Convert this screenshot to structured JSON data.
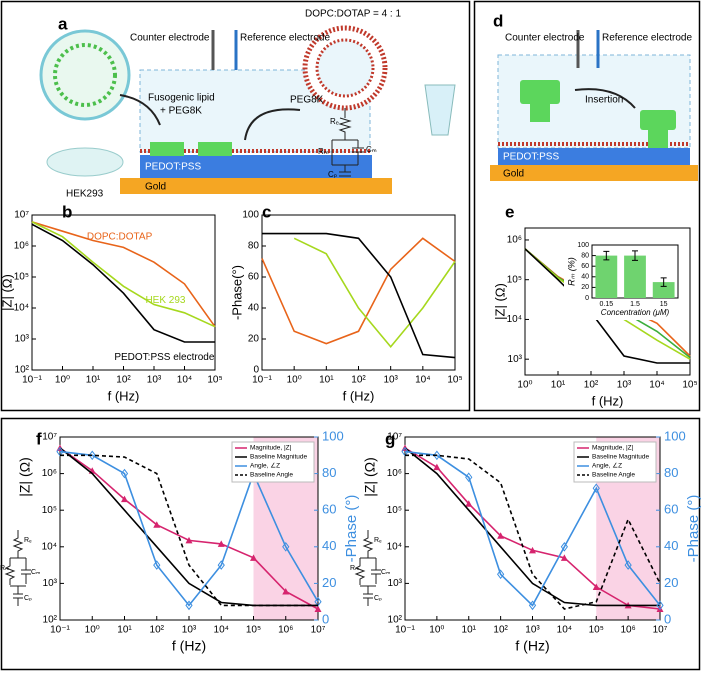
{
  "panels": {
    "a": {
      "label": "a",
      "ratio": "DOPC:DOTAP = 4 : 1",
      "counter": "Counter electrode",
      "reference": "Reference electrode",
      "fusogenic": "Fusogenic lipid",
      "fusogenic2": "+ PEG8K",
      "peg": "PEG8K",
      "cell": "HEK293",
      "pedot": "PEDOT:PSS",
      "gold": "Gold",
      "re": "Rₑ",
      "rm": "Rₘ",
      "cm": "Cₘ",
      "cp": "Cₚ"
    },
    "d": {
      "label": "d",
      "counter": "Counter electrode",
      "reference": "Reference electrode",
      "insertion": "Insertion",
      "pedot": "PEDOT:PSS",
      "gold": "Gold"
    }
  },
  "chart_data": [
    {
      "type": "line",
      "label": "b",
      "xlabel": "f (Hz)",
      "ylabel": "|Z| (Ω)",
      "xlog": true,
      "ylog": true,
      "direct_labels": true,
      "xlim": [
        0.1,
        100000
      ],
      "ylim": [
        100,
        10000000
      ],
      "xticks": [
        {
          "value": 0.1,
          "label": "10⁻¹"
        },
        {
          "value": 1,
          "label": "10⁰"
        },
        {
          "value": 10,
          "label": "10¹"
        },
        {
          "value": 100,
          "label": "10²"
        },
        {
          "value": 1000,
          "label": "10³"
        },
        {
          "value": 10000,
          "label": "10⁴"
        },
        {
          "value": 100000,
          "label": "10⁵"
        }
      ],
      "yticks": [
        {
          "value": 100,
          "label": "10²"
        },
        {
          "value": 1000,
          "label": "10³"
        },
        {
          "value": 10000,
          "label": "10⁴"
        },
        {
          "value": 100000,
          "label": "10⁵"
        },
        {
          "value": 1000000,
          "label": "10⁶"
        },
        {
          "value": 10000000,
          "label": "10⁷"
        }
      ],
      "x": [
        0.1,
        1,
        10,
        100,
        1000,
        10000,
        100000
      ],
      "series": [
        {
          "name": "DOPC:DOTAP",
          "color": "#e8641a",
          "values": [
            6000000,
            3000000,
            1500000,
            900000,
            300000,
            60000,
            2500
          ]
        },
        {
          "name": "HEK 293",
          "color": "#a6d81e",
          "values": [
            6000000,
            2000000,
            300000,
            50000,
            13000,
            7000,
            2500
          ]
        },
        {
          "name": "PEDOT:PSS electrode",
          "color": "#000000",
          "values": [
            5000000,
            1500000,
            250000,
            30000,
            2000,
            800,
            800
          ]
        }
      ]
    },
    {
      "type": "line",
      "label": "c",
      "xlabel": "f (Hz)",
      "ylabel": "-Phase(°)",
      "xlog": true,
      "xlim": [
        0.1,
        100000
      ],
      "ylim": [
        0,
        100
      ],
      "xticks": [
        {
          "value": 0.1,
          "label": "10⁻¹"
        },
        {
          "value": 1,
          "label": "10⁰"
        },
        {
          "value": 10,
          "label": "10¹"
        },
        {
          "value": 100,
          "label": "10²"
        },
        {
          "value": 1000,
          "label": "10³"
        },
        {
          "value": 10000,
          "label": "10⁴"
        },
        {
          "value": 100000,
          "label": "10⁵"
        }
      ],
      "yticks": [
        0,
        20,
        40,
        60,
        80,
        100
      ],
      "x": [
        0.1,
        1,
        10,
        100,
        1000,
        10000,
        100000
      ],
      "series": [
        {
          "color": "#e8641a",
          "values": [
            72,
            25,
            17,
            25,
            65,
            85,
            70
          ]
        },
        {
          "color": "#a6d81e",
          "values": [
            null,
            85,
            75,
            40,
            15,
            40,
            70
          ]
        },
        {
          "color": "#000000",
          "values": [
            88,
            88,
            88,
            85,
            60,
            10,
            8
          ]
        }
      ]
    },
    {
      "type": "line",
      "label": "e",
      "xlabel": "f (Hz)",
      "ylabel": "|Z| (Ω)",
      "xlog": true,
      "ylog": true,
      "xlim": [
        1,
        100000
      ],
      "ylim": [
        400,
        2000000
      ],
      "xticks": [
        {
          "value": 1,
          "label": "10⁰"
        },
        {
          "value": 10,
          "label": "10¹"
        },
        {
          "value": 100,
          "label": "10²"
        },
        {
          "value": 1000,
          "label": "10³"
        },
        {
          "value": 10000,
          "label": "10⁴"
        },
        {
          "value": 100000,
          "label": "10⁵"
        }
      ],
      "yticks": [
        {
          "value": 1000,
          "label": "10³"
        },
        {
          "value": 10000,
          "label": "10⁴"
        },
        {
          "value": 100000,
          "label": "10⁵"
        },
        {
          "value": 1000000,
          "label": "10⁶"
        }
      ],
      "x": [
        1,
        10,
        100,
        1000,
        10000,
        100000
      ],
      "series": [
        {
          "color": "#e8641a",
          "values": [
            600000,
            120000,
            40000,
            20000,
            8000,
            1200
          ]
        },
        {
          "color": "#3cae3c",
          "values": [
            600000,
            115000,
            35000,
            15000,
            5000,
            1100
          ]
        },
        {
          "color": "#a6d81e",
          "values": [
            600000,
            110000,
            30000,
            10000,
            3000,
            1000
          ]
        },
        {
          "color": "#000000",
          "values": [
            600000,
            100000,
            15000,
            1200,
            800,
            800
          ]
        }
      ]
    },
    {
      "type": "bar",
      "xlabel": "Concentration (μM)",
      "ylabel": "Rₘ (%)",
      "categories": [
        "0.15",
        "1.5",
        "15"
      ],
      "values": [
        80,
        80,
        30
      ],
      "errors": [
        8,
        9,
        8
      ],
      "color": "#6fd36f",
      "ylim": [
        0,
        100
      ],
      "yticks": [
        0,
        20,
        40,
        60,
        80,
        100
      ]
    },
    {
      "type": "line",
      "label": "f",
      "xlabel": "f (Hz)",
      "ylabel": "|Z| (Ω)",
      "y2label": "-Phase (°)",
      "xlog": true,
      "ylog": true,
      "xlim": [
        0.1,
        10000000
      ],
      "ylim": [
        100,
        10000000
      ],
      "y2lim": [
        0,
        100
      ],
      "legend": "top-right",
      "shade_x": [
        100000,
        10000000
      ],
      "shade_color": "#f9c8de",
      "circuit": [
        "Rₑ",
        "Rₘ",
        "Cₘ",
        "Cₚ"
      ],
      "xticks": [
        {
          "value": 0.1,
          "label": "10⁻¹"
        },
        {
          "value": 1,
          "label": "10⁰"
        },
        {
          "value": 10,
          "label": "10¹"
        },
        {
          "value": 100,
          "label": "10²"
        },
        {
          "value": 1000,
          "label": "10³"
        },
        {
          "value": 10000,
          "label": "10⁴"
        },
        {
          "value": 100000,
          "label": "10⁵"
        },
        {
          "value": 1000000,
          "label": "10⁶"
        },
        {
          "value": 10000000,
          "label": "10⁷"
        }
      ],
      "yticks": [
        {
          "value": 100,
          "label": "10²"
        },
        {
          "value": 1000,
          "label": "10³"
        },
        {
          "value": 10000,
          "label": "10⁴"
        },
        {
          "value": 100000,
          "label": "10⁵"
        },
        {
          "value": 1000000,
          "label": "10⁶"
        },
        {
          "value": 10000000,
          "label": "10⁷"
        }
      ],
      "y2ticks": [
        0,
        20,
        40,
        60,
        80,
        100
      ],
      "x": [
        0.1,
        1,
        10,
        100,
        1000,
        10000,
        100000,
        1000000,
        10000000
      ],
      "series": [
        {
          "name": "Magnitude, |Z|",
          "color": "#d6246e",
          "marker": "triangle",
          "values": [
            5000000,
            1200000,
            200000,
            40000,
            15000,
            12000,
            5000,
            600,
            200
          ]
        },
        {
          "name": "Baseline Magnitude",
          "color": "#000000",
          "values": [
            5000000,
            1000000,
            100000,
            10000,
            1000,
            300,
            250,
            250,
            250
          ]
        },
        {
          "name": "Angle, ∠Z",
          "color": "#3d8fe0",
          "axis": "y2",
          "marker": "diamond",
          "values": [
            92,
            90,
            80,
            30,
            8,
            30,
            80,
            40,
            10
          ]
        },
        {
          "name": "Baseline Angle",
          "color": "#000000",
          "axis": "y2",
          "dash": true,
          "values": [
            90,
            90,
            89,
            80,
            30,
            8,
            8,
            8,
            8
          ]
        }
      ]
    },
    {
      "type": "line",
      "label": "g",
      "xlabel": "f (Hz)",
      "ylabel": "|Z| (Ω)",
      "y2label": "-Phase (°)",
      "xlog": true,
      "ylog": true,
      "xlim": [
        0.1,
        10000000
      ],
      "ylim": [
        100,
        10000000
      ],
      "y2lim": [
        0,
        100
      ],
      "legend": "top-right",
      "shade_x": [
        100000,
        10000000
      ],
      "shade_color": "#f9c8de",
      "circuit": [
        "Rₑ",
        "Rₘ",
        "Cₘ",
        "Cₚ"
      ],
      "xticks": [
        {
          "value": 0.1,
          "label": "10⁻¹"
        },
        {
          "value": 1,
          "label": "10⁰"
        },
        {
          "value": 10,
          "label": "10¹"
        },
        {
          "value": 100,
          "label": "10²"
        },
        {
          "value": 1000,
          "label": "10³"
        },
        {
          "value": 10000,
          "label": "10⁴"
        },
        {
          "value": 100000,
          "label": "10⁵"
        },
        {
          "value": 1000000,
          "label": "10⁶"
        },
        {
          "value": 10000000,
          "label": "10⁷"
        }
      ],
      "yticks": [
        {
          "value": 100,
          "label": "10²"
        },
        {
          "value": 1000,
          "label": "10³"
        },
        {
          "value": 10000,
          "label": "10⁴"
        },
        {
          "value": 100000,
          "label": "10⁵"
        },
        {
          "value": 1000000,
          "label": "10⁶"
        },
        {
          "value": 10000000,
          "label": "10⁷"
        }
      ],
      "y2ticks": [
        0,
        20,
        40,
        60,
        80,
        100
      ],
      "x": [
        0.1,
        1,
        10,
        100,
        1000,
        10000,
        100000,
        1000000,
        10000000
      ],
      "series": [
        {
          "name": "Magnitude, |Z|",
          "color": "#d6246e",
          "marker": "triangle",
          "values": [
            5000000,
            1500000,
            150000,
            20000,
            8000,
            5000,
            800,
            250,
            200
          ]
        },
        {
          "name": "Baseline Magnitude",
          "color": "#000000",
          "values": [
            5000000,
            1000000,
            100000,
            10000,
            1000,
            300,
            250,
            250,
            250
          ]
        },
        {
          "name": "Angle, ∠Z",
          "color": "#3d8fe0",
          "axis": "y2",
          "marker": "diamond",
          "values": [
            92,
            90,
            78,
            25,
            8,
            40,
            72,
            30,
            8
          ]
        },
        {
          "name": "Baseline Angle",
          "color": "#000000",
          "axis": "y2",
          "dash": true,
          "values": [
            90,
            90,
            88,
            75,
            25,
            6,
            10,
            55,
            20
          ]
        }
      ]
    }
  ]
}
